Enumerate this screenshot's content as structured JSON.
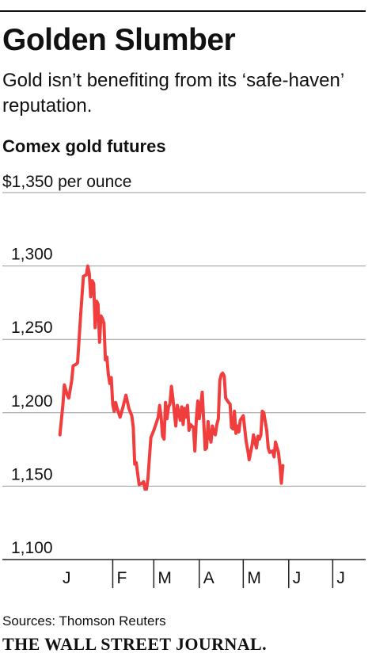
{
  "header": {
    "title": "Golden Slumber",
    "subtitle": "Gold isn’t benefiting from its ‘safe-haven’ reputation."
  },
  "chart_title": "Comex gold futures",
  "unit_label": "$1,350 per ounce",
  "source": "Sources: Thomson Reuters",
  "publisher": "THE WALL STREET JOURNAL.",
  "line_color": "#f03e3e",
  "chart_data": {
    "type": "line",
    "title": "Comex gold futures",
    "ylabel": "$1,350 per ounce",
    "ylim": [
      1100,
      1350
    ],
    "yticks": [
      1100,
      1150,
      1200,
      1250,
      1300,
      1350
    ],
    "ytick_labels": [
      "1,100",
      "1,150",
      "1,200",
      "1,250",
      "1,300",
      ""
    ],
    "xlim": [
      0,
      204
    ],
    "month_labels": [
      {
        "label": "J",
        "x": 0
      },
      {
        "label": "F",
        "x": 31
      },
      {
        "label": "M",
        "x": 59
      },
      {
        "label": "A",
        "x": 90
      },
      {
        "label": "M",
        "x": 120
      },
      {
        "label": "J",
        "x": 151
      },
      {
        "label": "J",
        "x": 181
      }
    ],
    "grid": true,
    "series": [
      {
        "values": [
          [
            -5,
            1185
          ],
          [
            -3,
            1205
          ],
          [
            -2,
            1219
          ],
          [
            0,
            1212
          ],
          [
            1,
            1210
          ],
          [
            3,
            1222
          ],
          [
            4,
            1232
          ],
          [
            6,
            1233
          ],
          [
            7,
            1234
          ],
          [
            9,
            1265
          ],
          [
            10,
            1279
          ],
          [
            11,
            1293
          ],
          [
            13,
            1294
          ],
          [
            14,
            1300
          ],
          [
            15,
            1295
          ],
          [
            16,
            1279
          ],
          [
            17,
            1290
          ],
          [
            18,
            1288
          ],
          [
            19,
            1258
          ],
          [
            20,
            1276
          ],
          [
            21,
            1274
          ],
          [
            22,
            1248
          ],
          [
            23,
            1266
          ],
          [
            24,
            1264
          ],
          [
            25,
            1261
          ],
          [
            26,
            1236
          ],
          [
            27,
            1238
          ],
          [
            28,
            1226
          ],
          [
            29,
            1220
          ],
          [
            30,
            1224
          ],
          [
            31,
            1206
          ],
          [
            32,
            1201
          ],
          [
            33,
            1207
          ],
          [
            34,
            1203
          ],
          [
            36,
            1197
          ],
          [
            38,
            1204
          ],
          [
            40,
            1212
          ],
          [
            42,
            1203
          ],
          [
            44,
            1198
          ],
          [
            45,
            1190
          ],
          [
            46,
            1165
          ],
          [
            47,
            1166
          ],
          [
            49,
            1151
          ],
          [
            51,
            1152
          ],
          [
            52,
            1153
          ],
          [
            53,
            1148
          ],
          [
            54,
            1148
          ],
          [
            55,
            1155
          ],
          [
            57,
            1183
          ],
          [
            59,
            1188
          ],
          [
            60,
            1191
          ],
          [
            62,
            1197
          ],
          [
            63,
            1205
          ],
          [
            64,
            1197
          ],
          [
            65,
            1184
          ],
          [
            66,
            1182
          ],
          [
            67,
            1207
          ],
          [
            68,
            1196
          ],
          [
            69,
            1204
          ],
          [
            70,
            1206
          ],
          [
            71,
            1218
          ],
          [
            72,
            1210
          ],
          [
            73,
            1200
          ],
          [
            74,
            1191
          ],
          [
            75,
            1205
          ],
          [
            76,
            1200
          ],
          [
            77,
            1195
          ],
          [
            78,
            1204
          ],
          [
            79,
            1192
          ],
          [
            80,
            1203
          ],
          [
            81,
            1197
          ],
          [
            82,
            1205
          ],
          [
            83,
            1188
          ],
          [
            84,
            1192
          ],
          [
            85,
            1191
          ],
          [
            86,
            1190
          ],
          [
            87,
            1174
          ],
          [
            88,
            1196
          ],
          [
            89,
            1208
          ],
          [
            90,
            1196
          ],
          [
            91,
            1205
          ],
          [
            92,
            1214
          ],
          [
            93,
            1195
          ],
          [
            94,
            1175
          ],
          [
            95,
            1176
          ],
          [
            96,
            1194
          ],
          [
            97,
            1184
          ],
          [
            98,
            1180
          ],
          [
            99,
            1191
          ],
          [
            100,
            1186
          ],
          [
            101,
            1185
          ],
          [
            102,
            1192
          ],
          [
            103,
            1196
          ],
          [
            104,
            1222
          ],
          [
            105,
            1226
          ],
          [
            106,
            1227
          ],
          [
            107,
            1225
          ],
          [
            108,
            1210
          ],
          [
            110,
            1207
          ],
          [
            111,
            1206
          ],
          [
            112,
            1190
          ],
          [
            113,
            1189
          ],
          [
            114,
            1201
          ],
          [
            115,
            1186
          ],
          [
            116,
            1191
          ],
          [
            117,
            1187
          ],
          [
            118,
            1195
          ],
          [
            120,
            1198
          ],
          [
            122,
            1180
          ],
          [
            123,
            1175
          ],
          [
            124,
            1168
          ],
          [
            126,
            1178
          ],
          [
            127,
            1185
          ],
          [
            128,
            1180
          ],
          [
            129,
            1176
          ],
          [
            130,
            1184
          ],
          [
            131,
            1182
          ],
          [
            132,
            1185
          ],
          [
            133,
            1201
          ],
          [
            134,
            1200
          ],
          [
            136,
            1188
          ],
          [
            137,
            1176
          ],
          [
            138,
            1173
          ],
          [
            140,
            1174
          ],
          [
            141,
            1170
          ],
          [
            142,
            1180
          ],
          [
            144,
            1173
          ],
          [
            145,
            1164
          ],
          [
            146,
            1152
          ],
          [
            147,
            1164
          ]
        ]
      }
    ]
  }
}
